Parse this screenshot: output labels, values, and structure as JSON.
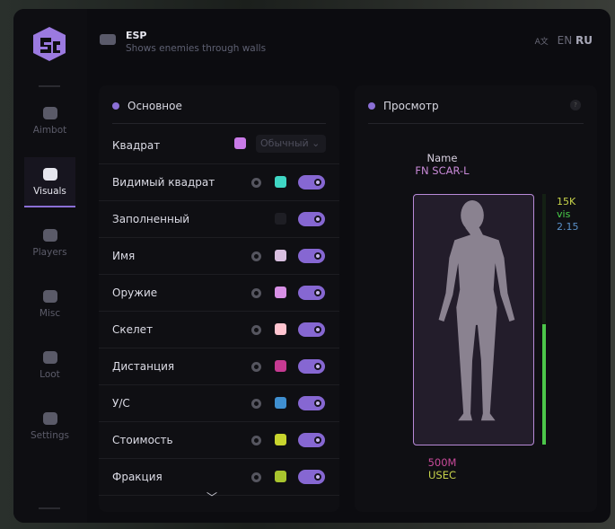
{
  "header": {
    "title": "ESP",
    "subtitle": "Shows enemies through walls",
    "lang": [
      "EN",
      "RU"
    ],
    "active_lang": "RU"
  },
  "sidebar": {
    "items": [
      {
        "label": "Aimbot",
        "icon": "alien-icon"
      },
      {
        "label": "Visuals",
        "icon": "vr-goggles-icon",
        "active": true
      },
      {
        "label": "Players",
        "icon": "users-icon"
      },
      {
        "label": "Misc",
        "icon": "dots-icon"
      },
      {
        "label": "Loot",
        "icon": "toolbox-icon"
      },
      {
        "label": "Settings",
        "icon": "list-icon"
      }
    ]
  },
  "main": {
    "title": "Основное",
    "box": {
      "label": "Квадрат",
      "color": "#c97ae8",
      "mode": "Обычный"
    },
    "rows": [
      {
        "label": "Видимый квадрат",
        "color": "#3fd6c4",
        "on": true,
        "gear": true
      },
      {
        "label": "Заполненный",
        "color": "#1e1e24",
        "on": true,
        "gear": false
      },
      {
        "label": "Имя",
        "color": "#d9bfe0",
        "on": true,
        "gear": true
      },
      {
        "label": "Оружие",
        "color": "#d890e6",
        "on": true,
        "gear": true
      },
      {
        "label": "Скелет",
        "color": "#ffc4d0",
        "on": true,
        "gear": true
      },
      {
        "label": "Дистанция",
        "color": "#c63a92",
        "on": true,
        "gear": true
      },
      {
        "label": "У/С",
        "color": "#3f8fd0",
        "on": true,
        "gear": true
      },
      {
        "label": "Стоимость",
        "color": "#c8d42e",
        "on": true,
        "gear": true
      },
      {
        "label": "Фракция",
        "color": "#a8c42e",
        "on": true,
        "gear": true
      }
    ]
  },
  "preview": {
    "title": "Просмотр",
    "help": "?",
    "name_label": "Name",
    "weapon": "FN SCAR-L",
    "value": "15K",
    "visible": "vis",
    "kd": "2.15",
    "distance": "500M",
    "faction": "USEC",
    "health_percent": 48
  }
}
